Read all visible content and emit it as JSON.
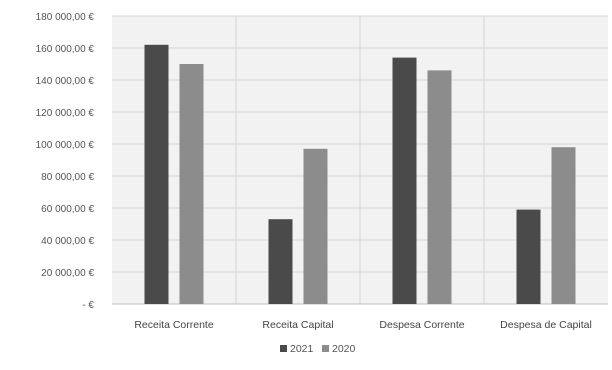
{
  "chart_data": {
    "type": "bar",
    "categories": [
      "Receita Corrente",
      "Receita Capital",
      "Despesa Corrente",
      "Despesa de Capital"
    ],
    "series": [
      {
        "name": "2021",
        "values": [
          162000,
          53000,
          154000,
          59000
        ],
        "color": "#4a4a4a"
      },
      {
        "name": "2020",
        "values": [
          150000,
          97000,
          146000,
          98000
        ],
        "color": "#8c8c8c"
      }
    ],
    "y_tick_labels": [
      "- €",
      "20 000,00 €",
      "40 000,00 €",
      "60 000,00 €",
      "80 000,00 €",
      "100 000,00 €",
      "120 000,00 €",
      "140 000,00 €",
      "160 000,00 €",
      "180 000,00 €"
    ],
    "ylim": [
      0,
      180000
    ],
    "y_step": 20000,
    "grid": true,
    "legend_position": "bottom"
  }
}
